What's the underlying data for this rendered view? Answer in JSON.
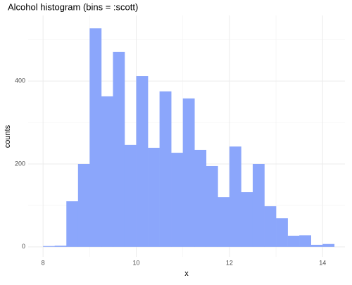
{
  "chart_data": {
    "type": "histogram",
    "title": "Alcohol histogram (bins = :scott)",
    "x_label": "x",
    "y_label": "counts",
    "bins": [
      8.0,
      8.25,
      8.5,
      8.75,
      9.0,
      9.25,
      9.5,
      9.75,
      10.0,
      10.25,
      10.5,
      10.75,
      11.0,
      11.25,
      11.5,
      11.75,
      12.0,
      12.25,
      12.5,
      12.75,
      13.0,
      13.25,
      13.5,
      13.75,
      14.0,
      14.25
    ],
    "values": [
      2,
      3,
      110,
      200,
      527,
      363,
      470,
      246,
      412,
      239,
      375,
      227,
      358,
      234,
      195,
      120,
      242,
      132,
      200,
      98,
      69,
      27,
      28,
      5,
      7
    ],
    "color": "#8ba6fb",
    "xlim": [
      7.68,
      14.48
    ],
    "xticks": [
      8,
      10,
      12,
      14
    ],
    "xminor": [
      9,
      11,
      13
    ],
    "ylim": [
      -24,
      558
    ],
    "yticks": [
      0,
      200,
      400
    ],
    "yminor": [
      100,
      300,
      500
    ],
    "grid": true
  }
}
